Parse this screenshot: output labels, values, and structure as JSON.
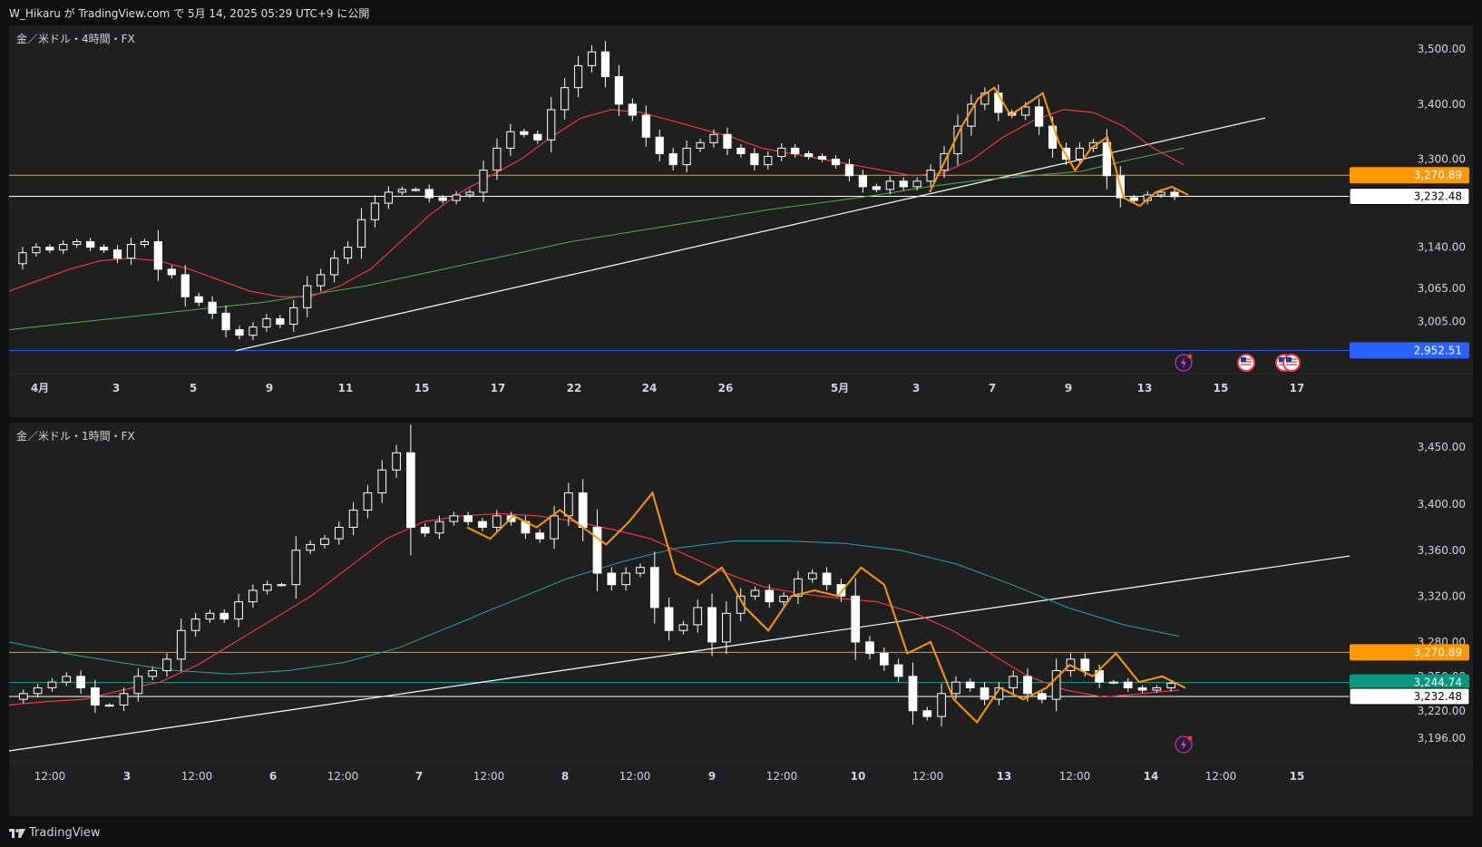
{
  "header": {
    "text": "W_Hikaru が TradingView.com で 5月 14, 2025 05:29 UTC+9 に公開"
  },
  "footer": {
    "brand": "TradingView"
  },
  "colors": {
    "bg": "#1f1f1f",
    "up": "#ffffff",
    "down": "#ffffff",
    "ma_red": "#f23645",
    "ma_green": "#4caf50",
    "ma_teal": "#22ab94",
    "ma_orange": "#ff9800",
    "trend": "#ffffff",
    "hline_orange": "#ff9800",
    "hline_blue": "#2962ff"
  },
  "chart_data": [
    {
      "type": "candlestick",
      "title": "金／米ドル・4時間・FX",
      "icons": [
        "flash-icon",
        "us-flag-icon",
        "us-flag-icon",
        "us-flag-icon"
      ],
      "y_ticks": [
        "3,500.00",
        "3,400.00",
        "3,300.00",
        "3,140.00",
        "3,065.00",
        "3,005.00"
      ],
      "x_ticks": [
        "4月",
        "3",
        "5",
        "9",
        "11",
        "15",
        "17",
        "22",
        "24",
        "26",
        "5月",
        "3",
        "7",
        "9",
        "13",
        "15",
        "17"
      ],
      "price_labels": [
        {
          "value": 3270.89,
          "text": "3,270.89",
          "color": "#ff9800"
        },
        {
          "value": 3232.48,
          "text": "3,232.48",
          "color": "#ffffff"
        },
        {
          "value": 2952.51,
          "text": "2,952.51",
          "color": "#2962ff"
        }
      ],
      "close_path": [
        3110,
        3130,
        3140,
        3135,
        3145,
        3150,
        3140,
        3135,
        3120,
        3145,
        3150,
        3100,
        3090,
        3050,
        3040,
        3020,
        2990,
        2980,
        2995,
        3010,
        3000,
        3030,
        3070,
        3090,
        3120,
        3140,
        3190,
        3220,
        3240,
        3245,
        3245,
        3230,
        3225,
        3235,
        3240,
        3280,
        3320,
        3350,
        3345,
        3335,
        3390,
        3430,
        3470,
        3495,
        3450,
        3400,
        3380,
        3340,
        3310,
        3290,
        3320,
        3330,
        3345,
        3320,
        3310,
        3290,
        3305,
        3320,
        3310,
        3305,
        3300,
        3290,
        3270,
        3250,
        3245,
        3260,
        3250,
        3260,
        3280,
        3310,
        3360,
        3400,
        3420,
        3385,
        3380,
        3395,
        3360,
        3320,
        3300,
        3320,
        3330,
        3270,
        3230,
        3225,
        3235,
        3240,
        3232
      ],
      "ma_red": [
        3060,
        3080,
        3100,
        3115,
        3120,
        3115,
        3100,
        3080,
        3060,
        3050,
        3050,
        3070,
        3100,
        3150,
        3200,
        3240,
        3270,
        3300,
        3340,
        3375,
        3390,
        3385,
        3370,
        3355,
        3340,
        3320,
        3310,
        3300,
        3290,
        3280,
        3270,
        3275,
        3300,
        3340,
        3370,
        3390,
        3385,
        3360,
        3320,
        3290
      ],
      "ma_green": [
        2990,
        3000,
        3010,
        3020,
        3030,
        3040,
        3055,
        3070,
        3090,
        3110,
        3130,
        3150,
        3165,
        3180,
        3195,
        3210,
        3222,
        3235,
        3250,
        3262,
        3270,
        3278,
        3300,
        3320
      ],
      "ma_orange": [
        3240,
        3300,
        3360,
        3410,
        3430,
        3380,
        3400,
        3420,
        3330,
        3280,
        3320,
        3340,
        3230,
        3215,
        3240,
        3250,
        3235
      ],
      "y_range": [
        2930,
        3530
      ]
    },
    {
      "type": "candlestick",
      "title": "金／米ドル・1時間・FX",
      "icons": [
        "flash-icon"
      ],
      "y_ticks": [
        "3,450.00",
        "3,400.00",
        "3,360.00",
        "3,320.00",
        "3,280.00",
        "3,250.00",
        "3,220.00",
        "3,196.00"
      ],
      "x_ticks": [
        "12:00",
        "3",
        "12:00",
        "6",
        "12:00",
        "7",
        "12:00",
        "8",
        "12:00",
        "9",
        "12:00",
        "10",
        "12:00",
        "13",
        "12:00",
        "14",
        "12:00",
        "15"
      ],
      "price_labels": [
        {
          "value": 3270.89,
          "text": "3,270.89",
          "color": "#ff9800"
        },
        {
          "value": 3244.74,
          "text": "3,244.74",
          "color": "#089981"
        },
        {
          "value": 3232.48,
          "text": "3,232.48",
          "color": "#ffffff"
        }
      ],
      "close_path": [
        3230,
        3235,
        3240,
        3245,
        3250,
        3240,
        3225,
        3225,
        3235,
        3250,
        3255,
        3265,
        3290,
        3300,
        3305,
        3300,
        3315,
        3325,
        3330,
        3330,
        3360,
        3365,
        3370,
        3380,
        3395,
        3410,
        3430,
        3445,
        3380,
        3375,
        3385,
        3390,
        3385,
        3380,
        3390,
        3385,
        3375,
        3370,
        3390,
        3410,
        3380,
        3340,
        3330,
        3340,
        3345,
        3310,
        3290,
        3295,
        3310,
        3280,
        3305,
        3320,
        3325,
        3315,
        3320,
        3335,
        3340,
        3330,
        3320,
        3280,
        3270,
        3260,
        3250,
        3220,
        3215,
        3235,
        3245,
        3240,
        3230,
        3240,
        3250,
        3235,
        3230,
        3255,
        3265,
        3255,
        3245,
        3245,
        3240,
        3238,
        3240,
        3244
      ],
      "ma_red": [
        3225,
        3228,
        3230,
        3238,
        3245,
        3260,
        3280,
        3300,
        3320,
        3345,
        3370,
        3385,
        3390,
        3392,
        3390,
        3385,
        3378,
        3370,
        3355,
        3340,
        3328,
        3322,
        3318,
        3315,
        3305,
        3290,
        3270,
        3250,
        3238,
        3232,
        3235,
        3238
      ],
      "ma_teal": [
        3280,
        3270,
        3262,
        3255,
        3252,
        3255,
        3262,
        3275,
        3295,
        3315,
        3335,
        3350,
        3362,
        3368,
        3368,
        3366,
        3360,
        3348,
        3330,
        3310,
        3295,
        3285
      ],
      "ma_orange": [
        3380,
        3370,
        3390,
        3380,
        3395,
        3380,
        3365,
        3385,
        3410,
        3340,
        3330,
        3345,
        3310,
        3290,
        3320,
        3325,
        3320,
        3345,
        3330,
        3270,
        3280,
        3230,
        3210,
        3240,
        3230,
        3240,
        3260,
        3250,
        3270,
        3245,
        3250,
        3240
      ],
      "y_range": [
        3185,
        3465
      ]
    }
  ]
}
